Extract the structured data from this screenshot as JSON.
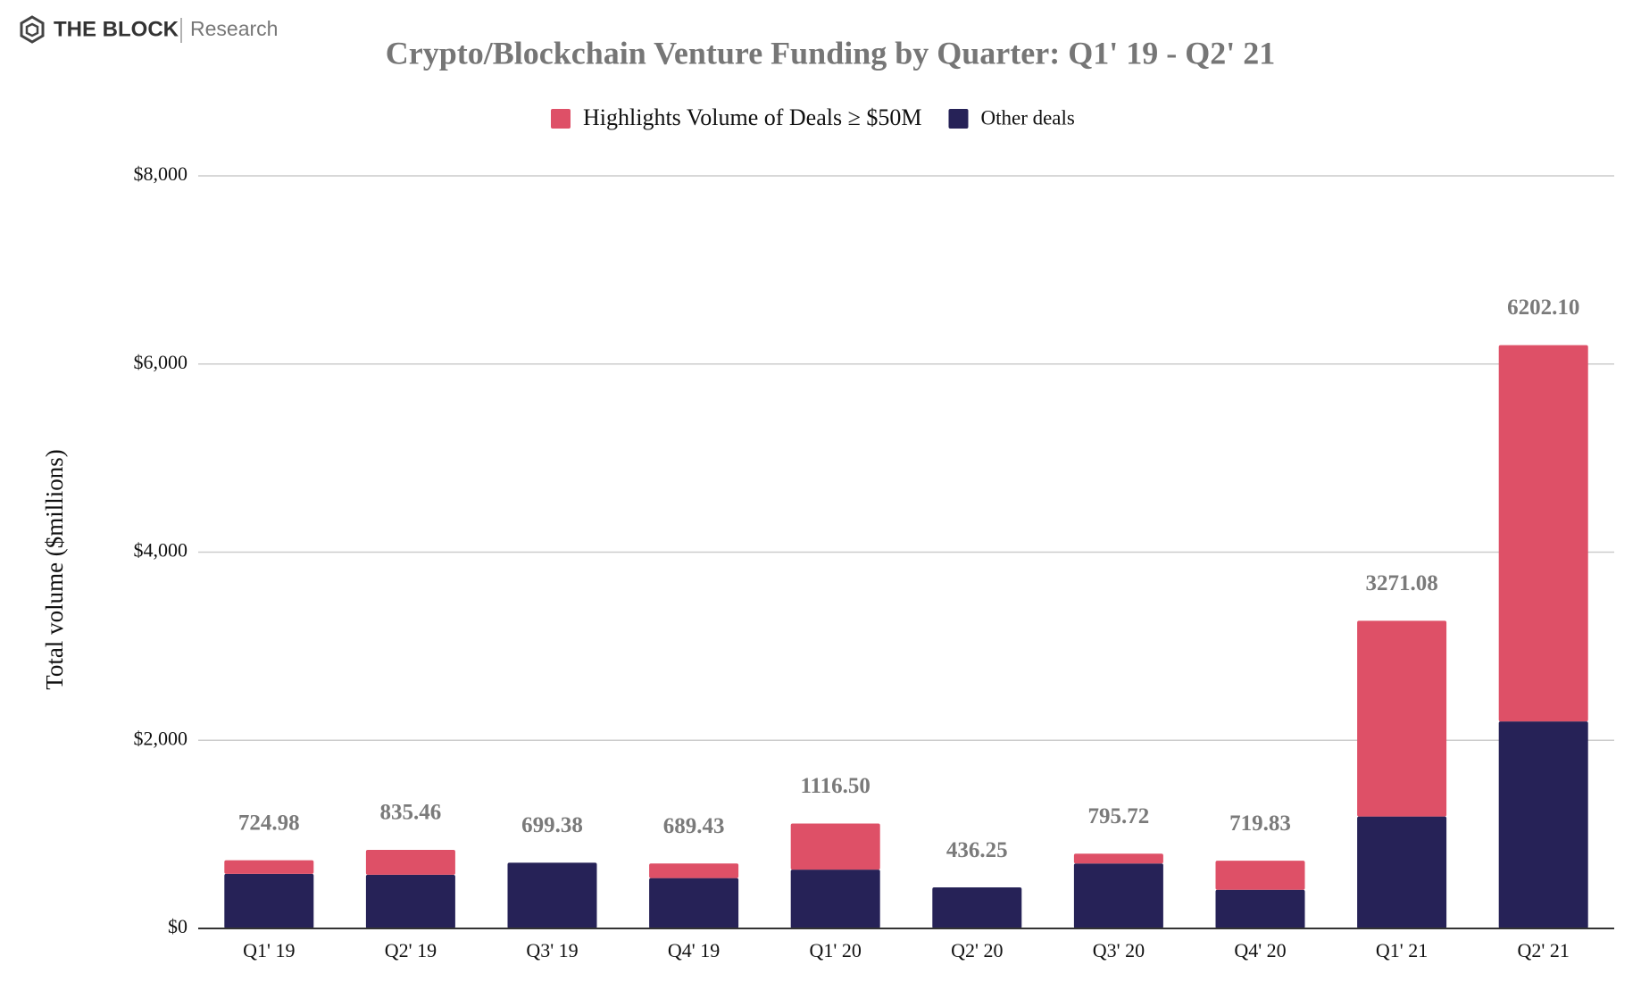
{
  "brand": {
    "name": "THE BLOCK",
    "section": "Research"
  },
  "chart_data": {
    "type": "stacked_bar",
    "title": "Crypto/Blockchain Venture Funding by Quarter: Q1' 19 - Q2' 21",
    "y_label": "Total volume ($millions)",
    "categories": [
      "Q1' 19",
      "Q2' 19",
      "Q3' 19",
      "Q4' 19",
      "Q1' 20",
      "Q2' 20",
      "Q3' 20",
      "Q4' 20",
      "Q1' 21",
      "Q2' 21"
    ],
    "series": [
      {
        "name": "Other deals",
        "color": "#262257",
        "values": [
          580,
          570,
          699,
          535,
          625,
          436,
          690,
          410,
          1190,
          2200
        ]
      },
      {
        "name": "Highlights Volume of Deals ≥ $50M",
        "color": "#de5067",
        "values": [
          145,
          265,
          0,
          155,
          490,
          0,
          105,
          310,
          2080,
          4000
        ]
      }
    ],
    "totals": [
      724.98,
      835.46,
      699.38,
      689.43,
      1116.5,
      436.25,
      795.72,
      719.83,
      3271.08,
      6202.1
    ],
    "total_labels": [
      "724.98",
      "835.46",
      "699.38",
      "689.43",
      "1116.50",
      "436.25",
      "795.72",
      "719.83",
      "3271.08",
      "6202.10"
    ],
    "ylim": [
      0,
      8000
    ],
    "yticks": [
      {
        "value": 0,
        "label": "$0"
      },
      {
        "value": 2000,
        "label": "$2,000"
      },
      {
        "value": 4000,
        "label": "$4,000"
      },
      {
        "value": 6000,
        "label": "$6,000"
      },
      {
        "value": 8000,
        "label": "$8,000"
      }
    ],
    "grid": true
  }
}
